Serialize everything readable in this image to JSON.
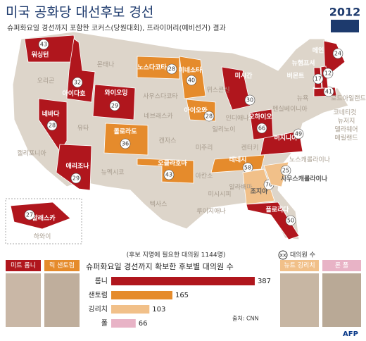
{
  "header": {
    "title": "미국 공화당 대선후보 경선",
    "subtitle": "슈퍼화요일 경선까지 포함한 코커스(당원대회), 프라이머리(예비선거) 결과",
    "logo": "2012"
  },
  "candidates": [
    {
      "name": "미트 롬니",
      "short": "롬니",
      "color": "#b0161d",
      "delegates": 387
    },
    {
      "name": "릭 샌토럼",
      "short": "샌토럼",
      "color": "#e58b2c",
      "delegates": 165
    },
    {
      "name": "뉴트 깅리치",
      "short": "깅리치",
      "color": "#f1c089",
      "delegates": 103
    },
    {
      "name": "론 폴",
      "short": "폴",
      "color": "#e8b3c6",
      "delegates": 66
    }
  ],
  "map": {
    "states": [
      {
        "name": "워싱턴",
        "delegates": 43,
        "color": "#b0161d"
      },
      {
        "name": "아이다호",
        "delegates": 32,
        "color": "#b0161d"
      },
      {
        "name": "와이오밍",
        "delegates": 29,
        "color": "#b0161d"
      },
      {
        "name": "네바다",
        "delegates": 28,
        "color": "#b0161d"
      },
      {
        "name": "애리조나",
        "delegates": 29,
        "color": "#b0161d"
      },
      {
        "name": "노스다코타",
        "delegates": 28,
        "color": "#e58b2c"
      },
      {
        "name": "미네소타",
        "delegates": 40,
        "color": "#e58b2c"
      },
      {
        "name": "아이오와",
        "delegates": 28,
        "color": "#e58b2c"
      },
      {
        "name": "콜로라도",
        "delegates": 36,
        "color": "#e58b2c"
      },
      {
        "name": "오클라호마",
        "delegates": 43,
        "color": "#e58b2c"
      },
      {
        "name": "테네시",
        "delegates": 58,
        "color": "#e58b2c"
      },
      {
        "name": "미시간",
        "delegates": 30,
        "color": "#b0161d"
      },
      {
        "name": "오하이오",
        "delegates": 66,
        "color": "#b0161d"
      },
      {
        "name": "버지니아",
        "delegates": 49,
        "color": "#b0161d"
      },
      {
        "name": "조지아",
        "delegates": 76,
        "color": "#f1c089"
      },
      {
        "name": "사우스캐롤라이나",
        "delegates": 25,
        "color": "#f1c089"
      },
      {
        "name": "플로리다",
        "delegates": 50,
        "color": "#b0161d"
      },
      {
        "name": "알래스카",
        "delegates": 27,
        "color": "#b0161d"
      },
      {
        "name": "매사추세츠",
        "delegates": 41,
        "color": "#b0161d"
      },
      {
        "name": "메인",
        "delegates": 24,
        "color": "#b0161d"
      },
      {
        "name": "뉴햄프셔",
        "delegates": 12,
        "color": "#b0161d"
      },
      {
        "name": "버몬트",
        "delegates": 17,
        "color": "#b0161d"
      }
    ],
    "other_states": [
      "오리곤",
      "몬태나",
      "사우스다코타",
      "위스콘신",
      "네브래스카",
      "유타",
      "캘리포니아",
      "캔자스",
      "뉴멕시코",
      "텍사스",
      "미주리",
      "아칸소",
      "일리노이",
      "인디애나",
      "켄터키",
      "노스캐롤라이나",
      "미시시피",
      "알라배마",
      "루이지애나",
      "펜실베이니아",
      "뉴욕",
      "로드아일랜드",
      "코네티컷",
      "뉴저지",
      "델라웨어",
      "메릴랜드",
      "하와이"
    ]
  },
  "delegate_chart": {
    "title": "슈퍼화요일 경선까지 확보한 후보별 대의원 수",
    "note": "(후보 지명에 필요한 대의원 1144명)",
    "legend_symbol": "xx",
    "legend_text": "대의원 수",
    "source": "출처: CNN"
  },
  "credit": "AFP"
}
